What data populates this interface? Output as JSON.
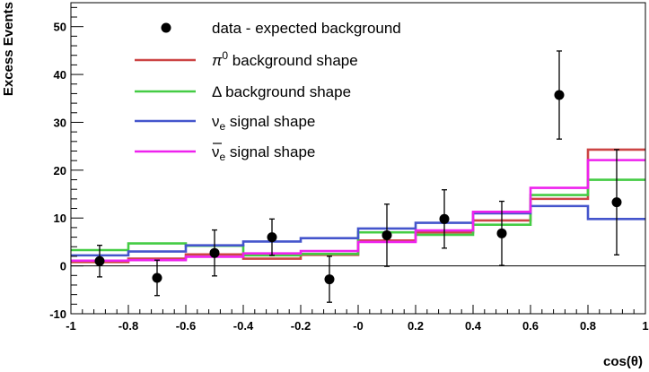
{
  "chart_data": {
    "type": "line",
    "xlabel": "cos(θ)",
    "ylabel": "Excess Events",
    "xlim": [
      -1,
      1
    ],
    "ylim": [
      -10,
      55
    ],
    "xticks": [
      -1,
      -0.8,
      -0.6,
      -0.4,
      -0.2,
      0,
      0.2,
      0.4,
      0.6,
      0.8,
      1
    ],
    "xtick_labels": [
      "-1",
      "-0.8",
      "-0.6",
      "-0.4",
      "-0.2",
      "-0",
      "0.2",
      "0.4",
      "0.6",
      "0.8",
      "1"
    ],
    "yticks": [
      -10,
      0,
      10,
      20,
      30,
      40,
      50
    ],
    "ytick_labels": [
      "-10",
      "0",
      "10",
      "20",
      "30",
      "40",
      "50"
    ],
    "bin_edges": [
      -1,
      -0.8,
      -0.6,
      -0.4,
      -0.2,
      0,
      0.2,
      0.4,
      0.6,
      0.8,
      1
    ],
    "legend_position": "top-left",
    "data_points": {
      "name": "data - expected background",
      "x": [
        -0.9,
        -0.7,
        -0.5,
        -0.3,
        -0.1,
        0.1,
        0.3,
        0.5,
        0.7,
        0.9
      ],
      "y": [
        1.0,
        -2.5,
        2.7,
        6.0,
        -2.8,
        6.4,
        9.8,
        6.8,
        35.7,
        13.3
      ],
      "err": [
        3.3,
        3.7,
        4.8,
        3.8,
        4.8,
        6.5,
        6.1,
        6.7,
        9.2,
        11.0
      ]
    },
    "series": [
      {
        "name": "π⁰ background shape",
        "legend_main": "π",
        "legend_sup": "0",
        "legend_rest": " background shape",
        "color": "#cc4444",
        "values": [
          0.8,
          1.5,
          2.4,
          1.5,
          2.3,
          5.3,
          7.0,
          9.5,
          14.0,
          24.3
        ]
      },
      {
        "name": "Δ background shape",
        "legend_main": "Δ",
        "legend_sup": "",
        "legend_rest": " background shape",
        "color": "#44cc44",
        "values": [
          3.3,
          4.7,
          4.2,
          2.2,
          2.5,
          7.0,
          6.5,
          8.6,
          14.8,
          18.0
        ]
      },
      {
        "name": "νe signal shape",
        "legend_main": "ν",
        "legend_sub": "e",
        "legend_rest": " signal shape",
        "color": "#4455cc",
        "values": [
          2.2,
          3.0,
          4.3,
          5.1,
          5.8,
          7.8,
          9.0,
          11.0,
          12.5,
          9.8
        ]
      },
      {
        "name": "ν̄e signal shape",
        "legend_main": "ν",
        "legend_sub": "e",
        "legend_bar": true,
        "legend_rest": " signal shape",
        "color": "#ee22ee",
        "values": [
          1.1,
          1.2,
          1.9,
          2.6,
          3.1,
          5.0,
          7.4,
          11.3,
          16.3,
          22.1
        ]
      }
    ]
  }
}
